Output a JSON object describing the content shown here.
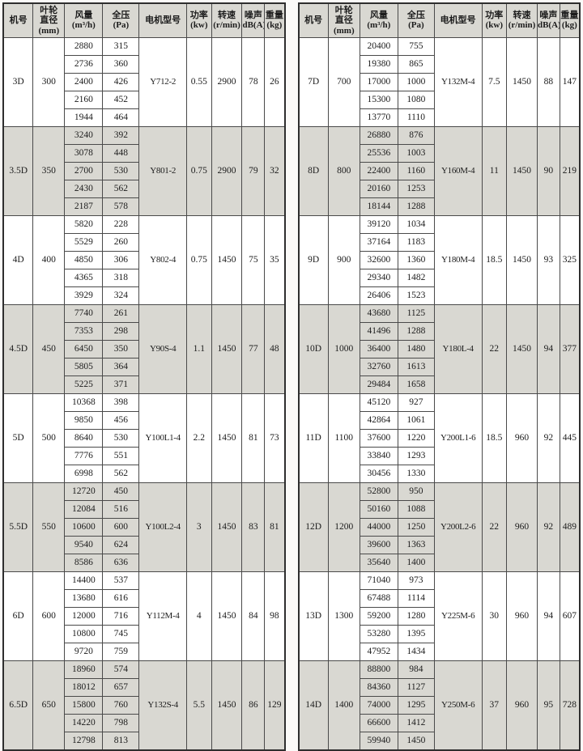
{
  "columns": [
    {
      "id": "model",
      "lines": [
        "机号"
      ]
    },
    {
      "id": "diameter",
      "lines": [
        "叶轮",
        "直径",
        "(mm)"
      ]
    },
    {
      "id": "flow",
      "lines": [
        "风量",
        "(m³/h)"
      ]
    },
    {
      "id": "pressure",
      "lines": [
        "全压",
        "(Pa)"
      ]
    },
    {
      "id": "motor",
      "lines": [
        "电机型号"
      ]
    },
    {
      "id": "power",
      "lines": [
        "功率",
        "(kw)"
      ]
    },
    {
      "id": "speed",
      "lines": [
        "转速",
        "(r/min)"
      ]
    },
    {
      "id": "noise",
      "lines": [
        "噪声",
        "dB(A)"
      ]
    },
    {
      "id": "weight",
      "lines": [
        "重量",
        "(kg)"
      ]
    }
  ],
  "colors": {
    "shaded_row": "#d9d8d2",
    "header_bg": "#d9d8d2",
    "grid_line": "#4a4a4a",
    "outer_border": "#2e2e2e",
    "page_background": "#fbfaf8"
  },
  "tables": [
    {
      "name": "left",
      "groups": [
        {
          "model": "3D",
          "diameter": "300",
          "flows": [
            "2880",
            "2736",
            "2400",
            "2160",
            "1944"
          ],
          "pressures": [
            "315",
            "360",
            "426",
            "452",
            "464"
          ],
          "motor": "Y712-2",
          "power": "0.55",
          "speed": "2900",
          "noise": "78",
          "weight": "26"
        },
        {
          "model": "3.5D",
          "diameter": "350",
          "flows": [
            "3240",
            "3078",
            "2700",
            "2430",
            "2187"
          ],
          "pressures": [
            "392",
            "448",
            "530",
            "562",
            "578"
          ],
          "motor": "Y801-2",
          "power": "0.75",
          "speed": "2900",
          "noise": "79",
          "weight": "32"
        },
        {
          "model": "4D",
          "diameter": "400",
          "flows": [
            "5820",
            "5529",
            "4850",
            "4365",
            "3929"
          ],
          "pressures": [
            "228",
            "260",
            "306",
            "318",
            "324"
          ],
          "motor": "Y802-4",
          "power": "0.75",
          "speed": "1450",
          "noise": "75",
          "weight": "35"
        },
        {
          "model": "4.5D",
          "diameter": "450",
          "flows": [
            "7740",
            "7353",
            "6450",
            "5805",
            "5225"
          ],
          "pressures": [
            "261",
            "298",
            "350",
            "364",
            "371"
          ],
          "motor": "Y90S-4",
          "power": "1.1",
          "speed": "1450",
          "noise": "77",
          "weight": "48"
        },
        {
          "model": "5D",
          "diameter": "500",
          "flows": [
            "10368",
            "9850",
            "8640",
            "7776",
            "6998"
          ],
          "pressures": [
            "398",
            "456",
            "530",
            "551",
            "562"
          ],
          "motor": "Y100L1-4",
          "power": "2.2",
          "speed": "1450",
          "noise": "81",
          "weight": "73"
        },
        {
          "model": "5.5D",
          "diameter": "550",
          "flows": [
            "12720",
            "12084",
            "10600",
            "9540",
            "8586"
          ],
          "pressures": [
            "450",
            "516",
            "600",
            "624",
            "636"
          ],
          "motor": "Y100L2-4",
          "power": "3",
          "speed": "1450",
          "noise": "83",
          "weight": "81"
        },
        {
          "model": "6D",
          "diameter": "600",
          "flows": [
            "14400",
            "13680",
            "12000",
            "10800",
            "9720"
          ],
          "pressures": [
            "537",
            "616",
            "716",
            "745",
            "759"
          ],
          "motor": "Y112M-4",
          "power": "4",
          "speed": "1450",
          "noise": "84",
          "weight": "98"
        },
        {
          "model": "6.5D",
          "diameter": "650",
          "flows": [
            "18960",
            "18012",
            "15800",
            "14220",
            "12798"
          ],
          "pressures": [
            "574",
            "657",
            "760",
            "798",
            "813"
          ],
          "motor": "Y132S-4",
          "power": "5.5",
          "speed": "1450",
          "noise": "86",
          "weight": "129"
        }
      ]
    },
    {
      "name": "right",
      "groups": [
        {
          "model": "7D",
          "diameter": "700",
          "flows": [
            "20400",
            "19380",
            "17000",
            "15300",
            "13770"
          ],
          "pressures": [
            "755",
            "865",
            "1000",
            "1080",
            "1110"
          ],
          "motor": "Y132M-4",
          "power": "7.5",
          "speed": "1450",
          "noise": "88",
          "weight": "147"
        },
        {
          "model": "8D",
          "diameter": "800",
          "flows": [
            "26880",
            "25536",
            "22400",
            "20160",
            "18144"
          ],
          "pressures": [
            "876",
            "1003",
            "1160",
            "1253",
            "1288"
          ],
          "motor": "Y160M-4",
          "power": "11",
          "speed": "1450",
          "noise": "90",
          "weight": "219"
        },
        {
          "model": "9D",
          "diameter": "900",
          "flows": [
            "39120",
            "37164",
            "32600",
            "29340",
            "26406"
          ],
          "pressures": [
            "1034",
            "1183",
            "1360",
            "1482",
            "1523"
          ],
          "motor": "Y180M-4",
          "power": "18.5",
          "speed": "1450",
          "noise": "93",
          "weight": "325"
        },
        {
          "model": "10D",
          "diameter": "1000",
          "flows": [
            "43680",
            "41496",
            "36400",
            "32760",
            "29484"
          ],
          "pressures": [
            "1125",
            "1288",
            "1480",
            "1613",
            "1658"
          ],
          "motor": "Y180L-4",
          "power": "22",
          "speed": "1450",
          "noise": "94",
          "weight": "377"
        },
        {
          "model": "11D",
          "diameter": "1100",
          "flows": [
            "45120",
            "42864",
            "37600",
            "33840",
            "30456"
          ],
          "pressures": [
            "927",
            "1061",
            "1220",
            "1293",
            "1330"
          ],
          "motor": "Y200L1-6",
          "power": "18.5",
          "speed": "960",
          "noise": "92",
          "weight": "445"
        },
        {
          "model": "12D",
          "diameter": "1200",
          "flows": [
            "52800",
            "50160",
            "44000",
            "39600",
            "35640"
          ],
          "pressures": [
            "950",
            "1088",
            "1250",
            "1363",
            "1400"
          ],
          "motor": "Y200L2-6",
          "power": "22",
          "speed": "960",
          "noise": "92",
          "weight": "489"
        },
        {
          "model": "13D",
          "diameter": "1300",
          "flows": [
            "71040",
            "67488",
            "59200",
            "53280",
            "47952"
          ],
          "pressures": [
            "973",
            "1114",
            "1280",
            "1395",
            "1434"
          ],
          "motor": "Y225M-6",
          "power": "30",
          "speed": "960",
          "noise": "94",
          "weight": "607"
        },
        {
          "model": "14D",
          "diameter": "1400",
          "flows": [
            "88800",
            "84360",
            "74000",
            "66600",
            "59940"
          ],
          "pressures": [
            "984",
            "1127",
            "1295",
            "1412",
            "1450"
          ],
          "motor": "Y250M-6",
          "power": "37",
          "speed": "960",
          "noise": "95",
          "weight": "728"
        }
      ]
    }
  ]
}
